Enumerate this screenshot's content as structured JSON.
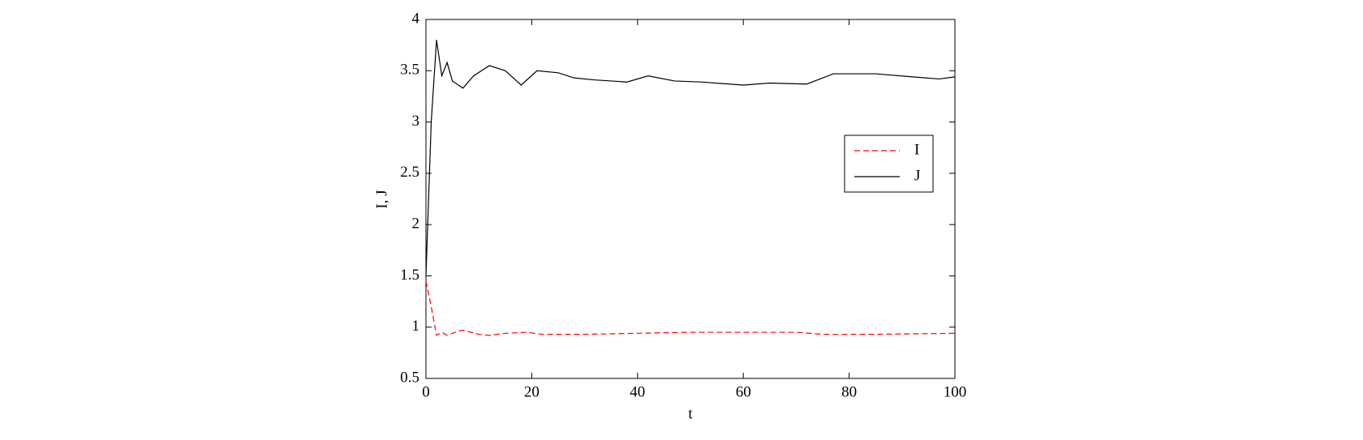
{
  "chart_data": {
    "type": "line",
    "xlabel": "t",
    "ylabel": "I, J",
    "xlim": [
      0,
      100
    ],
    "xticks": [
      0,
      20,
      40,
      60,
      80,
      100
    ],
    "ylim": [
      0.5,
      4
    ],
    "yticks": [
      0.5,
      1,
      1.5,
      2,
      2.5,
      3,
      3.5,
      4
    ],
    "legend": "right",
    "series": [
      {
        "name": "I",
        "color": "#ff0000",
        "dash": true,
        "x": [
          0,
          1,
          2,
          3,
          4,
          6,
          7,
          10,
          12,
          15,
          19,
          22,
          30,
          40,
          50,
          60,
          70,
          75,
          85,
          100
        ],
        "values": [
          1.45,
          1.2,
          0.92,
          0.95,
          0.92,
          0.96,
          0.97,
          0.93,
          0.92,
          0.94,
          0.95,
          0.93,
          0.93,
          0.94,
          0.95,
          0.95,
          0.95,
          0.93,
          0.93,
          0.94
        ]
      },
      {
        "name": "J",
        "color": "#000000",
        "dash": false,
        "x": [
          0,
          1,
          2,
          3,
          4,
          5,
          7,
          9,
          12,
          15,
          18,
          21,
          25,
          28,
          32,
          38,
          42,
          47,
          52,
          60,
          65,
          72,
          77,
          85,
          92,
          97,
          100
        ],
        "values": [
          1.5,
          3.0,
          3.8,
          3.45,
          3.58,
          3.4,
          3.33,
          3.45,
          3.55,
          3.5,
          3.36,
          3.5,
          3.48,
          3.43,
          3.41,
          3.39,
          3.45,
          3.4,
          3.39,
          3.36,
          3.38,
          3.37,
          3.47,
          3.47,
          3.44,
          3.42,
          3.44
        ]
      }
    ]
  }
}
